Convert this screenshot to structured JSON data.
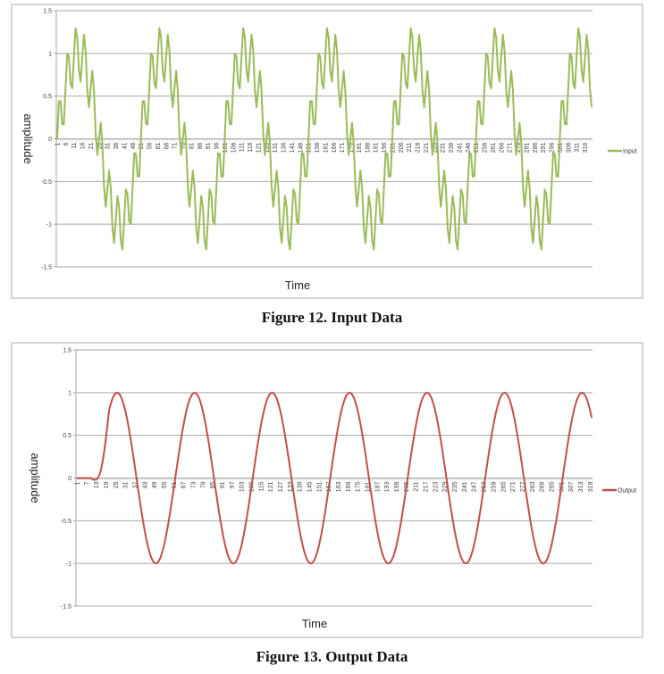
{
  "colors": {
    "input": "#9bbb59",
    "output": "#c0504d",
    "grid": "#a6a6a6",
    "frame": "#d4d4d4"
  },
  "figures": [
    {
      "id": "input",
      "caption": "Figure 12. Input Data",
      "xlabel": "Time",
      "ylabel": "amplitude",
      "legend": "Input",
      "yticks": [
        "1.5",
        "1",
        "0.5",
        "0",
        "-0.5",
        "-1",
        "-1.5"
      ]
    },
    {
      "id": "output",
      "caption": "Figure 13. Output Data",
      "xlabel": "Time",
      "ylabel": "amplitude",
      "legend": "Output",
      "yticks": [
        "1.5",
        "1",
        "0.5",
        "0",
        "-0.5",
        "-1",
        "-1.5"
      ]
    }
  ],
  "chart_data": [
    {
      "type": "line",
      "title": "Figure 12. Input Data",
      "xlabel": "Time",
      "ylabel": "amplitude",
      "ylim": [
        -1.5,
        1.5
      ],
      "yticks": [
        1.5,
        1,
        0.5,
        0,
        -0.5,
        -1,
        -1.5
      ],
      "x_range": [
        1,
        320
      ],
      "xtick_labels": [
        "1",
        "6",
        "11",
        "16",
        "21",
        "26",
        "31",
        "36",
        "41",
        "46",
        "51",
        "56",
        "61",
        "66",
        "71",
        "76",
        "81",
        "86",
        "91",
        "96",
        "101",
        "106",
        "111",
        "116",
        "121",
        "126",
        "131",
        "136",
        "141",
        "146",
        "151",
        "156",
        "161",
        "166",
        "171",
        "176",
        "181",
        "186",
        "191",
        "196",
        "201",
        "206",
        "211",
        "216",
        "221",
        "226",
        "231",
        "236",
        "241",
        "246",
        "251",
        "256",
        "261",
        "266",
        "271",
        "276",
        "281",
        "286",
        "291",
        "296",
        "301",
        "306",
        "311",
        "316"
      ],
      "grid": "horizontal",
      "legend_position": "right",
      "series": [
        {
          "name": "Input",
          "color": "#9bbb59",
          "description": "Sum of a low-frequency sine (amplitude 1, period ~50 samples) and a high-frequency sine (amplitude ~0.33, period ~5 samples); peaks reach about +/-1.32",
          "model": {
            "a1": 1.0,
            "p1": 50,
            "a2": 0.33,
            "p2": 5,
            "phase_start": 1
          },
          "approx_extrema": {
            "max": 1.32,
            "min": -1.32
          },
          "n_points": 320
        }
      ]
    },
    {
      "type": "line",
      "title": "Figure 13. Output Data",
      "xlabel": "Time",
      "ylabel": "amplitude",
      "ylim": [
        -1.5,
        1.5
      ],
      "yticks": [
        1.5,
        1,
        0.5,
        0,
        -0.5,
        -1,
        -1.5
      ],
      "x_range": [
        1,
        320
      ],
      "xtick_labels": [
        "1",
        "7",
        "13",
        "19",
        "25",
        "31",
        "37",
        "43",
        "49",
        "55",
        "61",
        "67",
        "73",
        "79",
        "85",
        "91",
        "97",
        "103",
        "109",
        "115",
        "121",
        "127",
        "133",
        "139",
        "145",
        "151",
        "157",
        "163",
        "169",
        "175",
        "181",
        "187",
        "193",
        "199",
        "205",
        "211",
        "217",
        "223",
        "229",
        "235",
        "241",
        "247",
        "253",
        "259",
        "265",
        "271",
        "277",
        "283",
        "289",
        "295",
        "301",
        "307",
        "313",
        "319"
      ],
      "grid": "horizontal",
      "legend_position": "right",
      "series": [
        {
          "name": "Output",
          "color": "#c0504d",
          "description": "Approximately 0 for samples 1-13 (filter delay), then a clean sine of amplitude 1 and period ~48 samples",
          "model": {
            "delay": 13,
            "amplitude": 1.0,
            "period": 48,
            "first_peak_x": 26
          },
          "peaks_x": [
            26,
            74,
            122,
            170,
            218,
            266,
            314
          ],
          "troughs_x": [
            50,
            98,
            146,
            194,
            242,
            290
          ],
          "end_value": 0.8,
          "n_points": 320
        }
      ]
    }
  ]
}
